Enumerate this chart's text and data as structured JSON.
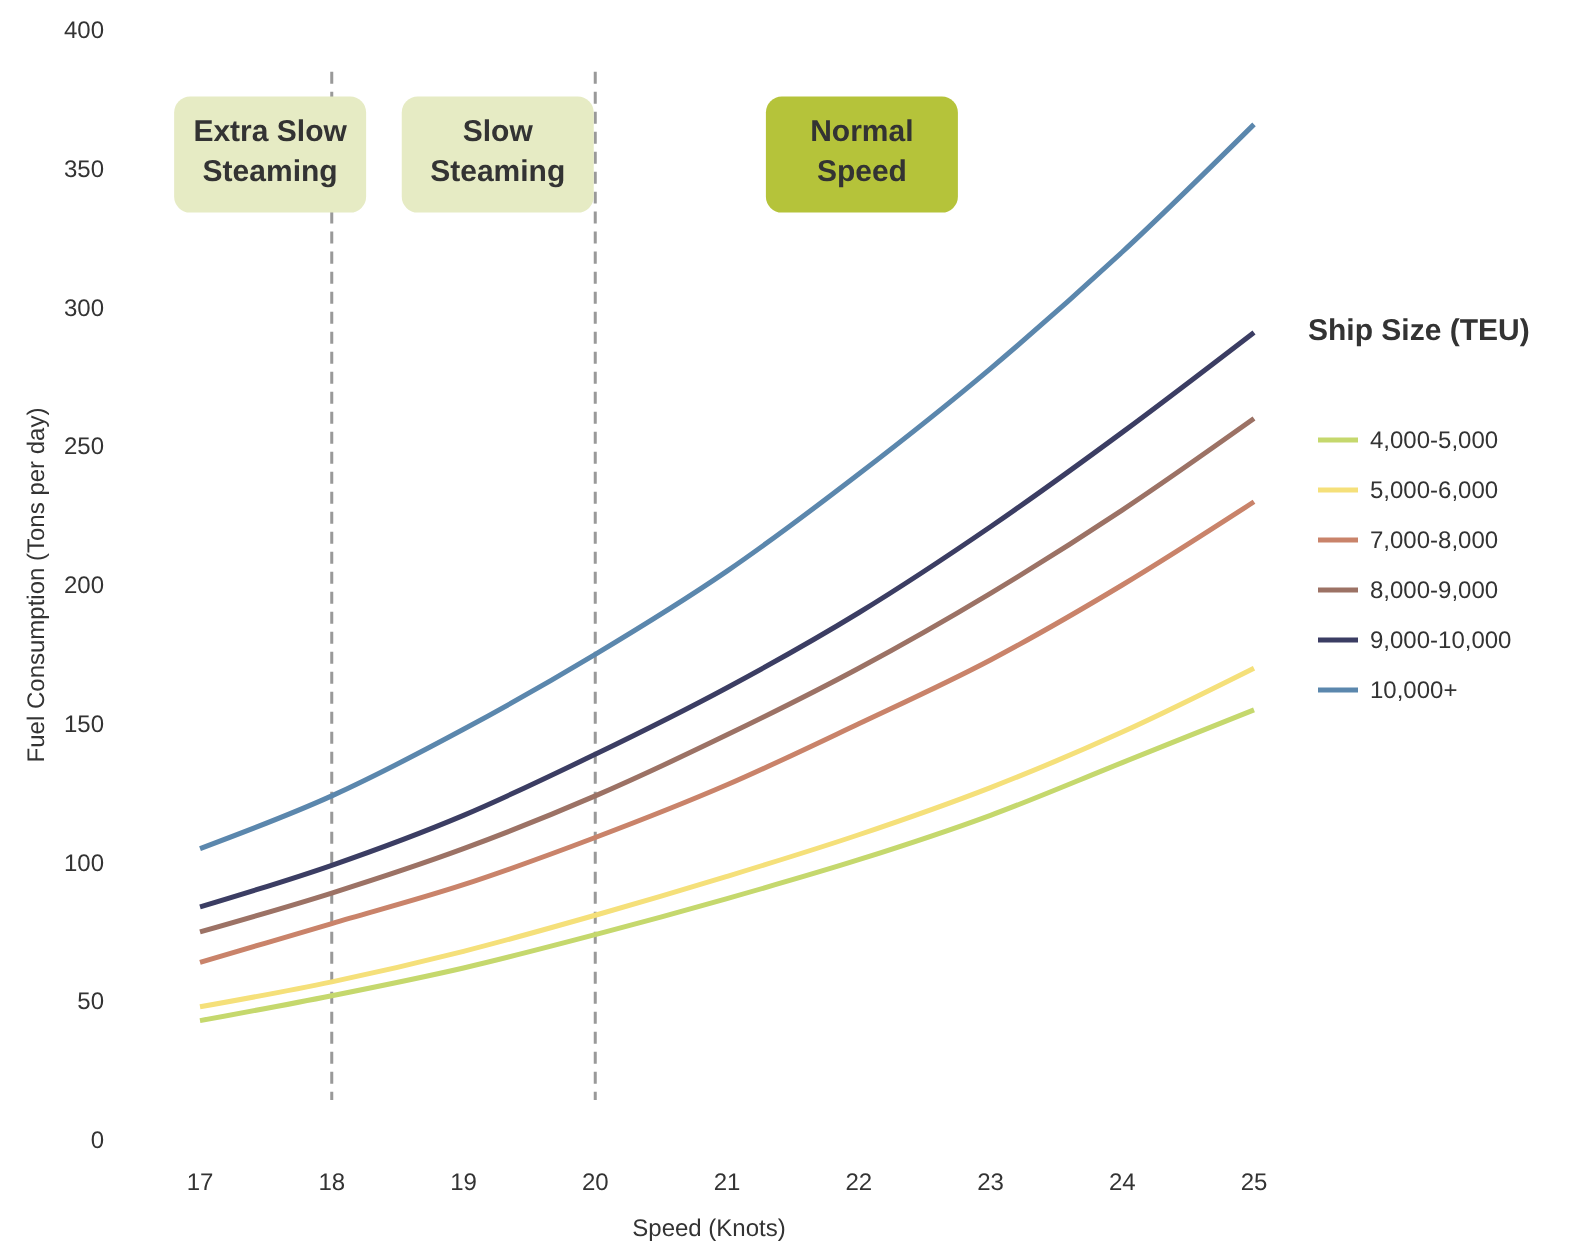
{
  "chart_data": {
    "type": "line",
    "xlabel": "Speed (Knots)",
    "ylabel": "Fuel Consumption (Tons per day)",
    "legend_title": "Ship Size (TEU)",
    "legend": "right",
    "grid": false,
    "marker": "none",
    "line_style": "solid",
    "x": [
      17,
      18,
      19,
      20,
      21,
      22,
      23,
      24,
      25
    ],
    "xlim": [
      17,
      25
    ],
    "xticks": [
      17,
      18,
      19,
      20,
      21,
      22,
      23,
      24,
      25
    ],
    "ylim": [
      0,
      400
    ],
    "yticks": [
      0,
      50,
      100,
      150,
      200,
      250,
      300,
      350,
      400
    ],
    "series": [
      {
        "name": "4,000-5,000",
        "color": "#c5d86d",
        "values": [
          43,
          52,
          62,
          74,
          87,
          101,
          117,
          136,
          155
        ]
      },
      {
        "name": "5,000-6,000",
        "color": "#f5e07a",
        "values": [
          48,
          57,
          68,
          81,
          95,
          110,
          127,
          147,
          170
        ]
      },
      {
        "name": "7,000-8,000",
        "color": "#c9836a",
        "values": [
          64,
          78,
          92,
          109,
          128,
          150,
          173,
          200,
          230
        ]
      },
      {
        "name": "8,000-9,000",
        "color": "#9c7265",
        "values": [
          75,
          89,
          105,
          124,
          146,
          170,
          197,
          227,
          260
        ]
      },
      {
        "name": "9,000-10,000",
        "color": "#3b3d63",
        "values": [
          84,
          99,
          117,
          139,
          163,
          190,
          221,
          255,
          291
        ]
      },
      {
        "name": "10,000+",
        "color": "#5b87ad",
        "values": [
          105,
          124,
          148,
          175,
          205,
          240,
          278,
          320,
          366
        ]
      }
    ],
    "ref_lines": [
      {
        "axis": "x",
        "value": 18,
        "color": "#999999",
        "line_style": "dashed"
      },
      {
        "axis": "x",
        "value": 20,
        "color": "#999999",
        "line_style": "dashed"
      }
    ],
    "annotations": [
      "Extra Slow Steaming",
      "Slow Steaming",
      "Normal Speed"
    ]
  }
}
